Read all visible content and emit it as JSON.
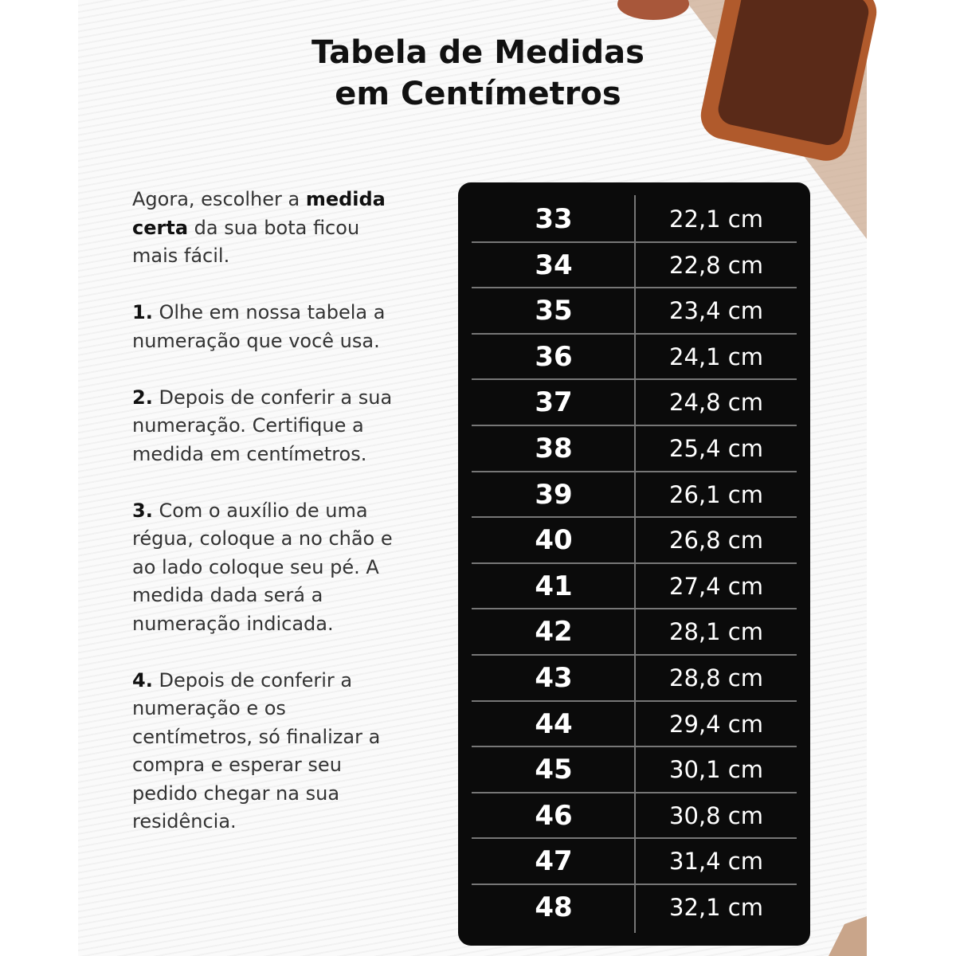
{
  "header": {
    "title_line1": "Tabela de Medidas",
    "title_line2": "em Centímetros"
  },
  "intro": {
    "before": "Agora, escolher a",
    "bold": "medida certa",
    "after": "da sua bota ficou mais fácil."
  },
  "steps": [
    {
      "number": "1.",
      "text": "Olhe em nossa tabela a numeração que você usa."
    },
    {
      "number": "2.",
      "text": "Depois de conferir a sua numeração. Certifique a medida em centímetros."
    },
    {
      "number": "3.",
      "text": "Com o auxílio de uma régua, coloque a no chão e ao lado coloque seu pé. A medida dada será a numeração indicada."
    },
    {
      "number": "4.",
      "text": "Depois de conferir a numeração e os centímetros, só finalizar a compra e esperar seu pedido chegar na sua residência."
    }
  ],
  "table": {
    "rows": [
      [
        33,
        "22,1 cm"
      ],
      [
        34,
        "22,8 cm"
      ],
      [
        35,
        "23,4 cm"
      ],
      [
        36,
        "24,1 cm"
      ],
      [
        37,
        "24,8 cm"
      ],
      [
        38,
        "25,4 cm"
      ],
      [
        39,
        "26,1 cm"
      ],
      [
        40,
        "26,8 cm"
      ],
      [
        41,
        "27,4 cm"
      ],
      [
        42,
        "28,1 cm"
      ],
      [
        43,
        "28,8 cm"
      ],
      [
        44,
        "29,4 cm"
      ],
      [
        45,
        "30,1 cm"
      ],
      [
        46,
        "30,8 cm"
      ],
      [
        47,
        "31,4 cm"
      ],
      [
        48,
        "32,1 cm"
      ]
    ]
  }
}
